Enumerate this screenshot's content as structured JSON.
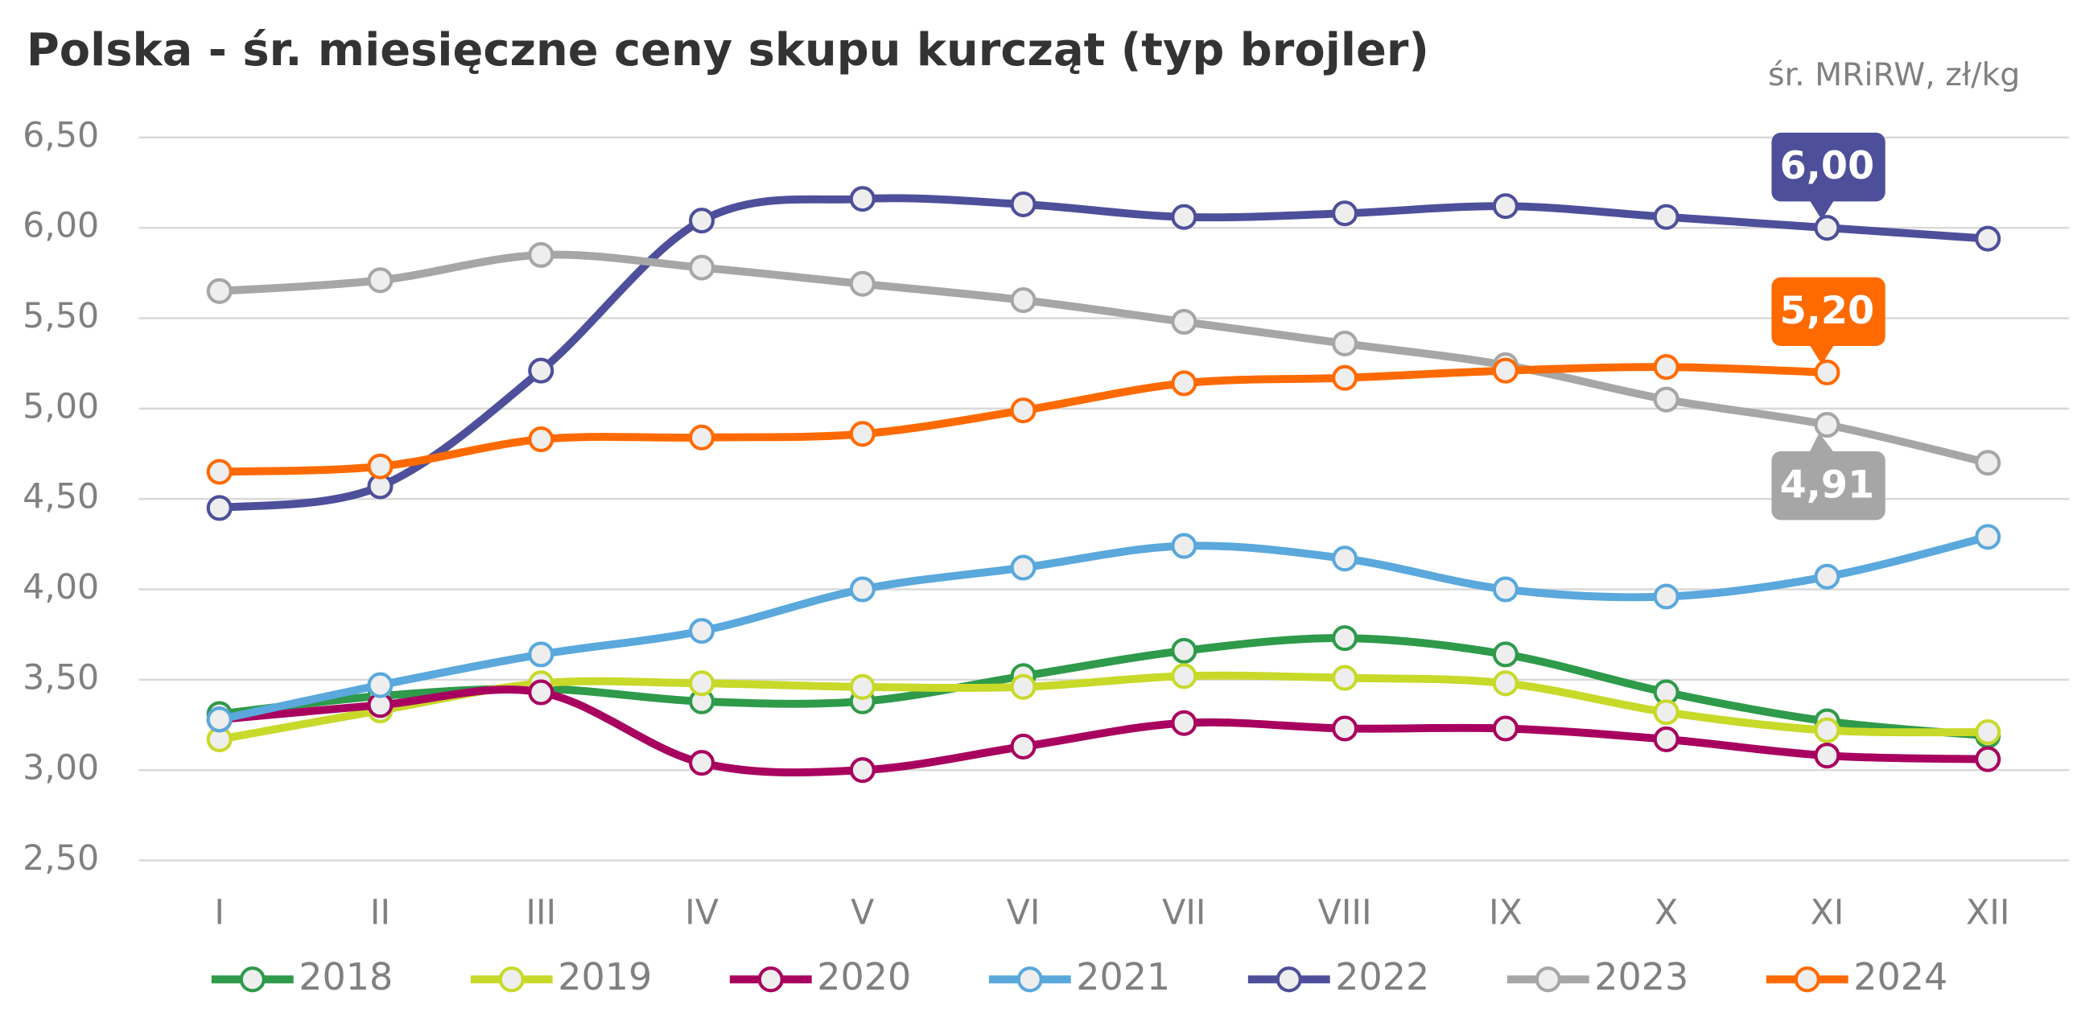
{
  "chart_data": {
    "type": "line",
    "title": "Polska - śr. miesięczne ceny skupu kurcząt (typ brojler)",
    "subtitle": "śr. MRiRW, zł/kg",
    "categories": [
      "I",
      "II",
      "III",
      "IV",
      "V",
      "VI",
      "VII",
      "VIII",
      "IX",
      "X",
      "XI",
      "XII"
    ],
    "ylim": [
      2.5,
      6.5
    ],
    "yticks": [
      {
        "value": 2.5,
        "label": "2,50"
      },
      {
        "value": 3,
        "label": "3,00"
      },
      {
        "value": 3.5,
        "label": "3,50"
      },
      {
        "value": 4,
        "label": "4,00"
      },
      {
        "value": 4.5,
        "label": "4,50"
      },
      {
        "value": 5,
        "label": "5,00"
      },
      {
        "value": 5.5,
        "label": "5,50"
      },
      {
        "value": 6,
        "label": "6,00"
      },
      {
        "value": 6.5,
        "label": "6,50"
      }
    ],
    "grid": true,
    "legend": "bottom",
    "series": [
      {
        "name": "2018",
        "color": "#2e9a4a",
        "values": [
          3.31,
          3.41,
          3.45,
          3.38,
          3.38,
          3.52,
          3.66,
          3.73,
          3.64,
          3.43,
          3.27,
          3.19
        ]
      },
      {
        "name": "2019",
        "color": "#c8d92a",
        "values": [
          3.17,
          3.33,
          3.48,
          3.48,
          3.46,
          3.46,
          3.52,
          3.51,
          3.48,
          3.32,
          3.22,
          3.21
        ]
      },
      {
        "name": "2020",
        "color": "#a8005f",
        "values": [
          3.28,
          3.36,
          3.43,
          3.04,
          3.0,
          3.13,
          3.26,
          3.23,
          3.23,
          3.17,
          3.08,
          3.06
        ]
      },
      {
        "name": "2021",
        "color": "#5aa8dc",
        "values": [
          3.28,
          3.47,
          3.64,
          3.77,
          4.0,
          4.12,
          4.24,
          4.17,
          4.0,
          3.96,
          4.07,
          4.29
        ]
      },
      {
        "name": "2022",
        "color": "#4e4f9a",
        "values": [
          4.45,
          4.57,
          5.21,
          6.04,
          6.16,
          6.13,
          6.06,
          6.08,
          6.12,
          6.06,
          6.0,
          5.94
        ],
        "value_labels": [
          null,
          null,
          null,
          null,
          null,
          null,
          null,
          null,
          null,
          null,
          "6,00",
          null
        ]
      },
      {
        "name": "2023",
        "color": "#a6a6a6",
        "values": [
          5.65,
          5.71,
          5.85,
          5.78,
          5.69,
          5.6,
          5.48,
          5.36,
          5.24,
          5.05,
          4.91,
          4.7
        ],
        "value_labels": [
          null,
          null,
          null,
          null,
          null,
          null,
          null,
          null,
          null,
          null,
          "4,91",
          null
        ]
      },
      {
        "name": "2024",
        "color": "#ff6a00",
        "values": [
          4.65,
          4.68,
          4.83,
          4.84,
          4.86,
          4.99,
          5.14,
          5.17,
          5.21,
          5.23,
          5.2,
          null
        ],
        "value_labels": [
          null,
          null,
          null,
          null,
          null,
          null,
          null,
          null,
          null,
          null,
          "5,20",
          null
        ]
      }
    ]
  }
}
